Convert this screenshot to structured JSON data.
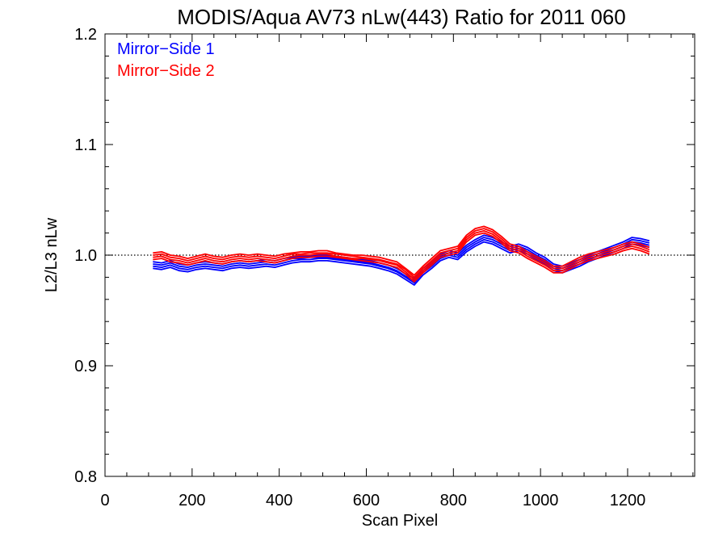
{
  "chart_data": {
    "type": "line",
    "title": "MODIS/Aqua AV73 nLw(443) Ratio for 2011 060",
    "xlabel": "Scan Pixel",
    "ylabel": "L2/L3 nLw",
    "xlim": [
      0,
      1354
    ],
    "ylim": [
      0.8,
      1.2
    ],
    "x_ticks": [
      0,
      200,
      400,
      600,
      800,
      1000,
      1200
    ],
    "y_ticks": [
      0.8,
      0.9,
      1.0,
      1.1,
      1.2
    ],
    "x_tick_labels": [
      "0",
      "200",
      "400",
      "600",
      "800",
      "1000",
      "1200"
    ],
    "y_tick_labels": [
      "0.8",
      "0.9",
      "1.0",
      "1.1",
      "1.2"
    ],
    "reference_line": {
      "y": 1.0,
      "style": "dotted"
    },
    "legend_position": "top-left",
    "legend": [
      {
        "label": "Mirror−Side 1",
        "color": "#0000ff"
      },
      {
        "label": "Mirror−Side 2",
        "color": "#ff0000"
      }
    ],
    "x": [
      110,
      130,
      150,
      170,
      190,
      210,
      230,
      250,
      270,
      290,
      310,
      330,
      350,
      370,
      390,
      410,
      430,
      450,
      470,
      490,
      510,
      530,
      550,
      570,
      590,
      610,
      630,
      650,
      670,
      690,
      710,
      730,
      750,
      770,
      790,
      810,
      830,
      850,
      870,
      890,
      910,
      930,
      950,
      970,
      990,
      1010,
      1030,
      1050,
      1070,
      1090,
      1110,
      1130,
      1150,
      1170,
      1190,
      1210,
      1230,
      1250
    ],
    "series": [
      {
        "group": 1,
        "color": "#0000ff",
        "values": [
          0.99,
          0.989,
          0.991,
          0.988,
          0.987,
          0.989,
          0.99,
          0.989,
          0.988,
          0.99,
          0.991,
          0.99,
          0.991,
          0.992,
          0.991,
          0.993,
          0.995,
          0.996,
          0.996,
          0.997,
          0.997,
          0.996,
          0.995,
          0.994,
          0.993,
          0.992,
          0.99,
          0.988,
          0.985,
          0.98,
          0.975,
          0.984,
          0.99,
          0.997,
          1.0,
          0.998,
          1.005,
          1.01,
          1.014,
          1.012,
          1.008,
          1.004,
          1.006,
          1.003,
          0.998,
          0.994,
          0.988,
          0.986,
          0.989,
          0.992,
          0.996,
          0.999,
          1.002,
          1.005,
          1.008,
          1.012,
          1.011,
          1.009
        ]
      },
      {
        "group": 1,
        "color": "#0000ff",
        "values": [
          0.992,
          0.991,
          0.993,
          0.99,
          0.989,
          0.991,
          0.992,
          0.991,
          0.99,
          0.992,
          0.993,
          0.992,
          0.993,
          0.994,
          0.993,
          0.995,
          0.997,
          0.997,
          0.998,
          0.998,
          0.998,
          0.997,
          0.996,
          0.995,
          0.994,
          0.993,
          0.991,
          0.989,
          0.986,
          0.981,
          0.977,
          0.986,
          0.992,
          0.999,
          1.002,
          1.0,
          1.007,
          1.012,
          1.016,
          1.014,
          1.01,
          1.006,
          1.008,
          1.005,
          1.0,
          0.996,
          0.99,
          0.988,
          0.991,
          0.994,
          0.998,
          1.001,
          1.004,
          1.007,
          1.01,
          1.014,
          1.013,
          1.011
        ]
      },
      {
        "group": 1,
        "color": "#0000ff",
        "values": [
          0.988,
          0.987,
          0.989,
          0.986,
          0.985,
          0.987,
          0.988,
          0.987,
          0.986,
          0.988,
          0.989,
          0.988,
          0.989,
          0.99,
          0.989,
          0.991,
          0.993,
          0.994,
          0.994,
          0.995,
          0.995,
          0.994,
          0.993,
          0.992,
          0.991,
          0.99,
          0.988,
          0.986,
          0.983,
          0.978,
          0.973,
          0.982,
          0.988,
          0.995,
          0.998,
          0.996,
          1.003,
          1.008,
          1.012,
          1.01,
          1.006,
          1.002,
          1.004,
          1.001,
          0.996,
          0.992,
          0.986,
          0.984,
          0.987,
          0.99,
          0.994,
          0.997,
          1.0,
          1.003,
          1.006,
          1.01,
          1.009,
          1.007
        ]
      },
      {
        "group": 1,
        "color": "#0000ff",
        "values": [
          0.994,
          0.993,
          0.995,
          0.992,
          0.991,
          0.993,
          0.994,
          0.993,
          0.992,
          0.994,
          0.995,
          0.994,
          0.995,
          0.996,
          0.995,
          0.997,
          0.998,
          0.999,
          0.999,
          1.0,
          1.0,
          0.999,
          0.998,
          0.997,
          0.996,
          0.995,
          0.993,
          0.991,
          0.988,
          0.983,
          0.979,
          0.988,
          0.994,
          1.001,
          1.004,
          1.002,
          1.009,
          1.014,
          1.018,
          1.016,
          1.012,
          1.008,
          1.01,
          1.007,
          1.002,
          0.998,
          0.992,
          0.99,
          0.993,
          0.996,
          1.0,
          1.003,
          1.006,
          1.009,
          1.012,
          1.016,
          1.015,
          1.013
        ]
      },
      {
        "group": 2,
        "color": "#ff0000",
        "values": [
          0.998,
          0.999,
          0.996,
          0.995,
          0.993,
          0.995,
          0.997,
          0.995,
          0.994,
          0.996,
          0.997,
          0.996,
          0.997,
          0.996,
          0.995,
          0.997,
          0.999,
          1.0,
          1.0,
          1.001,
          1.001,
          0.999,
          0.998,
          0.997,
          0.997,
          0.996,
          0.995,
          0.993,
          0.991,
          0.985,
          0.978,
          0.986,
          0.993,
          1.0,
          1.002,
          1.004,
          1.014,
          1.02,
          1.022,
          1.019,
          1.013,
          1.006,
          1.004,
          0.999,
          0.995,
          0.991,
          0.986,
          0.986,
          0.99,
          0.994,
          0.997,
          0.999,
          1.001,
          1.003,
          1.006,
          1.008,
          1.006,
          1.003
        ]
      },
      {
        "group": 2,
        "color": "#ff0000",
        "values": [
          1.0,
          1.001,
          0.998,
          0.997,
          0.995,
          0.997,
          0.999,
          0.997,
          0.996,
          0.998,
          0.999,
          0.998,
          0.999,
          0.998,
          0.997,
          0.999,
          1.001,
          1.001,
          1.002,
          1.002,
          1.002,
          1.001,
          1.0,
          0.999,
          0.998,
          0.997,
          0.996,
          0.994,
          0.992,
          0.987,
          0.98,
          0.988,
          0.995,
          1.002,
          1.004,
          1.006,
          1.016,
          1.022,
          1.024,
          1.021,
          1.015,
          1.008,
          1.006,
          1.001,
          0.997,
          0.993,
          0.988,
          0.988,
          0.992,
          0.996,
          0.999,
          1.001,
          1.003,
          1.005,
          1.008,
          1.01,
          1.008,
          1.005
        ]
      },
      {
        "group": 2,
        "color": "#ff0000",
        "values": [
          0.996,
          0.997,
          0.994,
          0.993,
          0.991,
          0.993,
          0.995,
          0.993,
          0.992,
          0.994,
          0.995,
          0.994,
          0.995,
          0.994,
          0.993,
          0.995,
          0.997,
          0.998,
          0.998,
          0.999,
          0.999,
          0.998,
          0.997,
          0.996,
          0.995,
          0.994,
          0.993,
          0.991,
          0.989,
          0.983,
          0.976,
          0.984,
          0.991,
          0.998,
          1.0,
          1.002,
          1.012,
          1.018,
          1.02,
          1.017,
          1.011,
          1.004,
          1.002,
          0.997,
          0.993,
          0.989,
          0.984,
          0.984,
          0.988,
          0.992,
          0.995,
          0.997,
          0.999,
          1.001,
          1.004,
          1.006,
          1.004,
          1.001
        ]
      },
      {
        "group": 2,
        "color": "#ff0000",
        "values": [
          1.002,
          1.003,
          1.0,
          0.999,
          0.997,
          0.999,
          1.001,
          0.999,
          0.998,
          1.0,
          1.001,
          1.0,
          1.001,
          1.0,
          0.999,
          1.001,
          1.002,
          1.003,
          1.003,
          1.004,
          1.004,
          1.002,
          1.001,
          1.0,
          1.0,
          0.999,
          0.998,
          0.996,
          0.994,
          0.988,
          0.982,
          0.99,
          0.997,
          1.004,
          1.006,
          1.008,
          1.018,
          1.024,
          1.026,
          1.023,
          1.017,
          1.01,
          1.008,
          1.003,
          0.999,
          0.995,
          0.99,
          0.99,
          0.994,
          0.998,
          1.001,
          1.003,
          1.005,
          1.007,
          1.01,
          1.012,
          1.01,
          1.007
        ]
      }
    ]
  }
}
